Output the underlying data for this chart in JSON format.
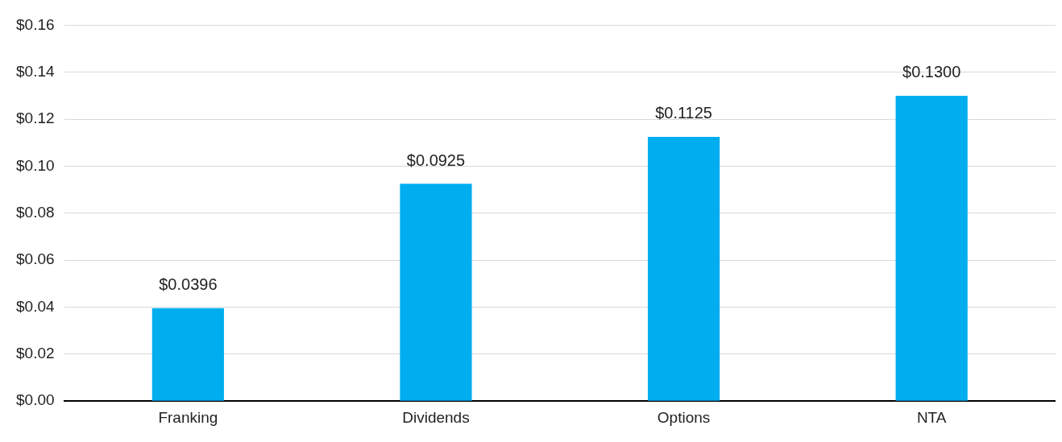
{
  "chart_data": {
    "type": "bar",
    "categories": [
      "Franking",
      "Dividends",
      "Options",
      "NTA"
    ],
    "values": [
      0.0396,
      0.0925,
      0.1125,
      0.13
    ],
    "color": "#00aeef",
    "value_labels": [
      "$0.0396",
      "$0.0925",
      "$0.1125",
      "$0.1300"
    ],
    "ylim": [
      0,
      0.16
    ],
    "yticks": [
      {
        "value": 0,
        "label": "$0.00"
      },
      {
        "value": 0.02,
        "label": "$0.02"
      },
      {
        "value": 0.04,
        "label": "$0.04"
      },
      {
        "value": 0.06,
        "label": "$0.06"
      },
      {
        "value": 0.08,
        "label": "$0.08"
      },
      {
        "value": 0.1,
        "label": "$0.10"
      },
      {
        "value": 0.12,
        "label": "$0.12"
      },
      {
        "value": 0.14,
        "label": "$0.14"
      },
      {
        "value": 0.16,
        "label": "$0.16"
      }
    ],
    "grid": "y",
    "legend": false
  }
}
